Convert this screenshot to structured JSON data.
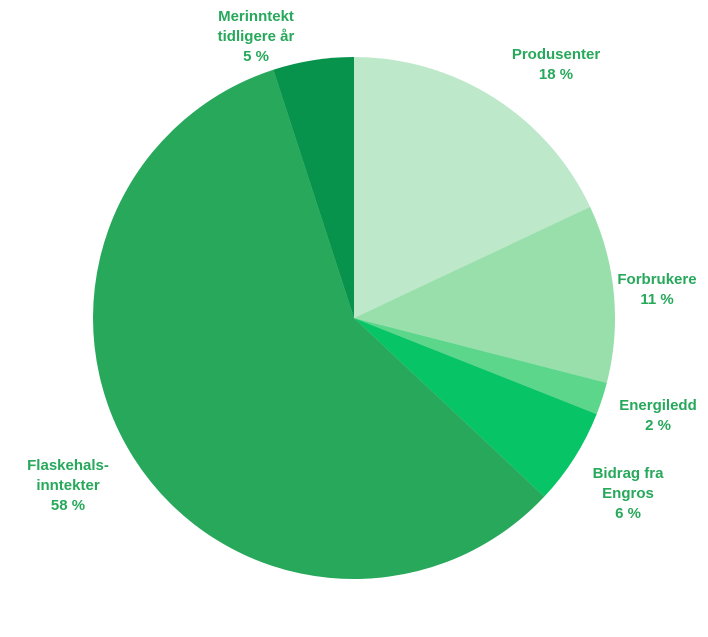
{
  "chart_data": {
    "type": "pie",
    "categories": [
      "Produsenter",
      "Forbrukere",
      "Energiledd",
      "Bidrag fra Engros",
      "Flaskehals-inntekter",
      "Merinntekt tidligere år"
    ],
    "values": [
      18,
      11,
      2,
      6,
      58,
      5
    ],
    "value_labels": [
      "18 %",
      "11 %",
      "2 %",
      "6 %",
      "58 %",
      "5 %"
    ],
    "colors": [
      "#bde8c9",
      "#98dfac",
      "#5cd68a",
      "#07c466",
      "#27a85b",
      "#07934c"
    ]
  }
}
